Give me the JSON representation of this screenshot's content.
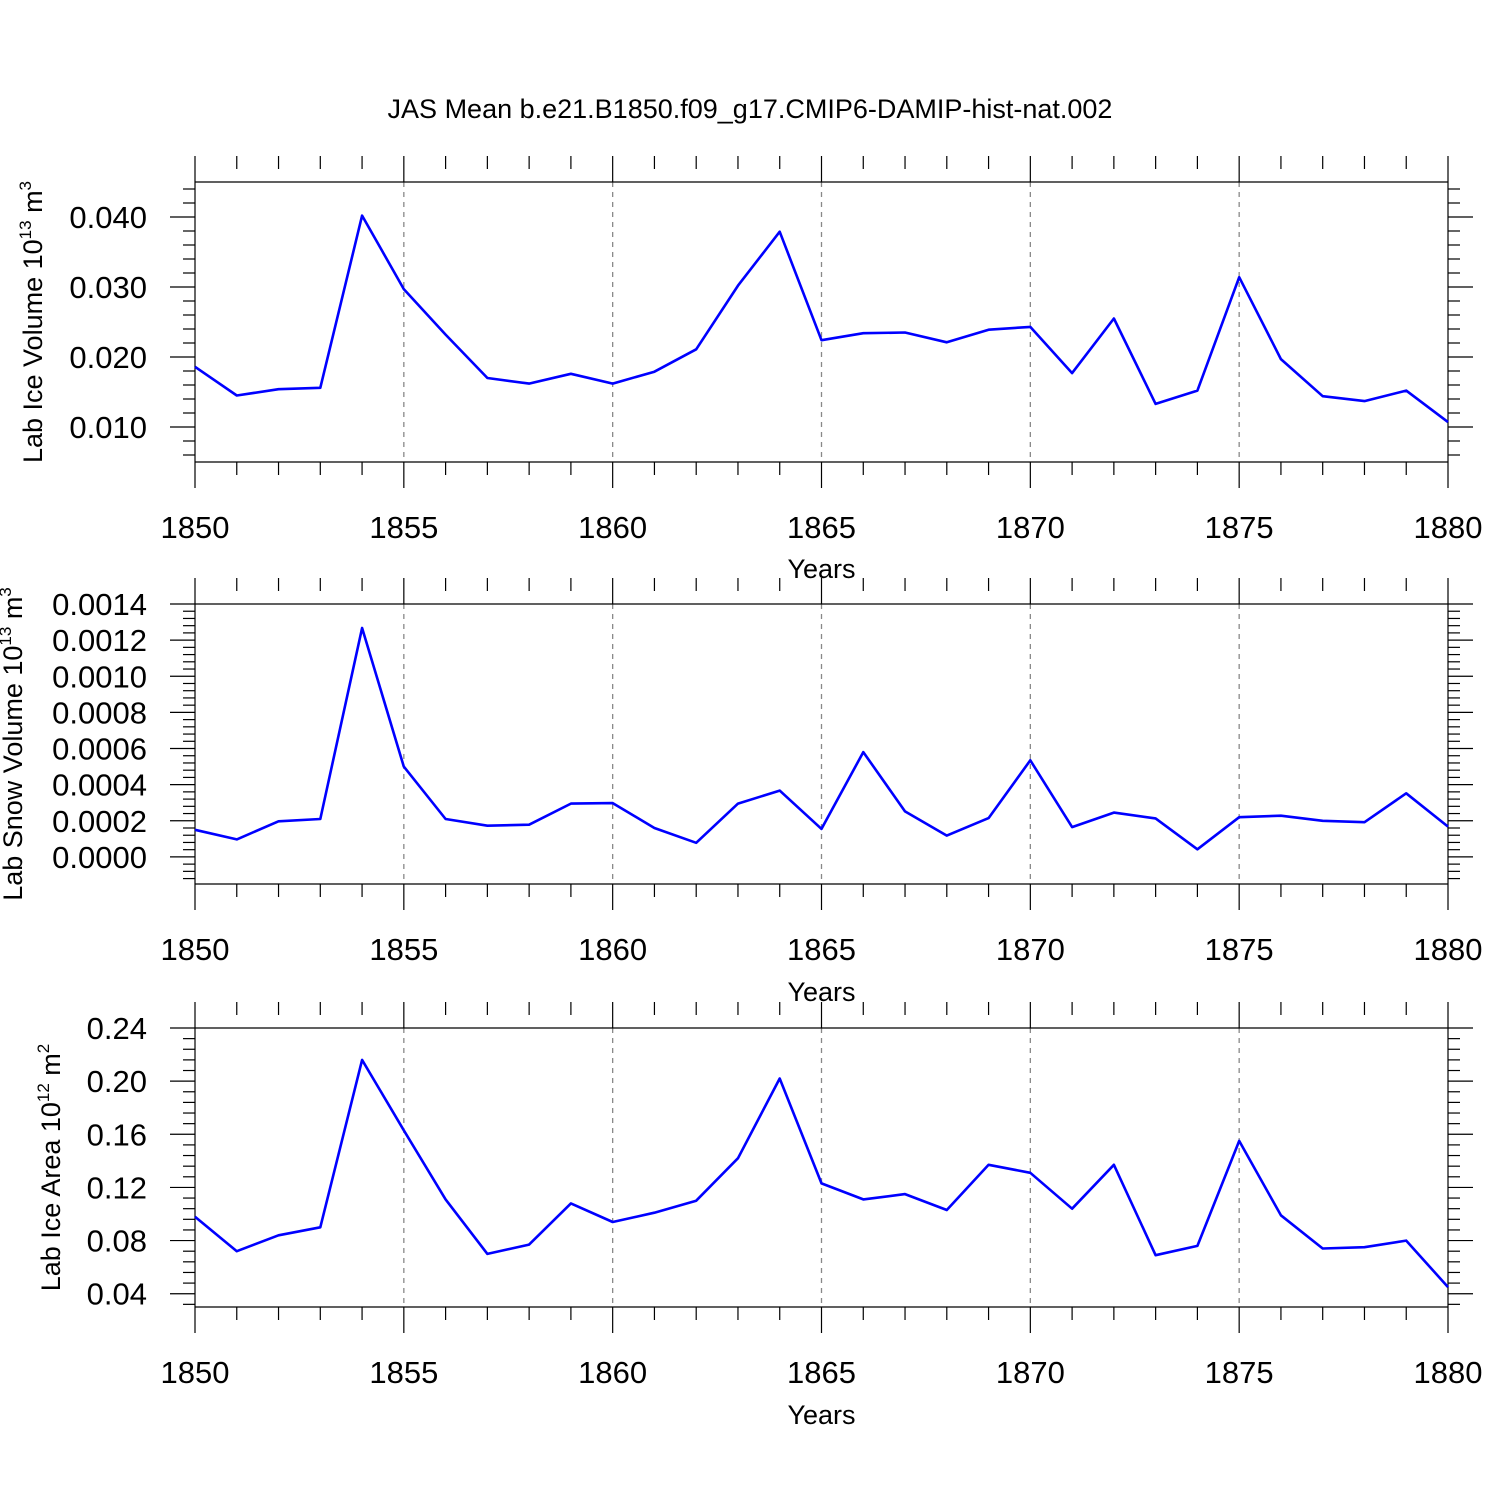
{
  "title": "JAS Mean b.e21.B1850.f09_g17.CMIP6-DAMIP-hist-nat.002",
  "chart_data": [
    {
      "type": "line",
      "title": "JAS Mean b.e21.B1850.f09_g17.CMIP6-DAMIP-hist-nat.002",
      "xlabel": "Years",
      "ylabel": {
        "text": "Lab Ice Volume 10",
        "sup1": "13",
        "mid": " m",
        "sup2": "3"
      },
      "xlim": [
        1850,
        1880
      ],
      "ylim": [
        0.005,
        0.045
      ],
      "x_ticks": [
        1850,
        1855,
        1860,
        1865,
        1870,
        1875,
        1880
      ],
      "x_tick_labels": [
        "1850",
        "1855",
        "1860",
        "1865",
        "1870",
        "1875",
        "1880"
      ],
      "y_ticks": [
        0.01,
        0.02,
        0.03,
        0.04
      ],
      "y_tick_labels": [
        "0.010",
        "0.020",
        "0.030",
        "0.040"
      ],
      "y_minor_step": 0.002,
      "grid": "x-major dashed",
      "series": [
        {
          "name": "Lab Ice Volume",
          "color": "#0000ff",
          "x": [
            1850,
            1851,
            1852,
            1853,
            1854,
            1855,
            1856,
            1857,
            1858,
            1859,
            1860,
            1861,
            1862,
            1863,
            1864,
            1865,
            1866,
            1867,
            1868,
            1869,
            1870,
            1871,
            1872,
            1873,
            1874,
            1875,
            1876,
            1877,
            1878,
            1879,
            1880
          ],
          "values": [
            0.0186,
            0.0145,
            0.0154,
            0.0156,
            0.0402,
            0.0297,
            0.0232,
            0.017,
            0.0162,
            0.0176,
            0.0162,
            0.0179,
            0.0211,
            0.0302,
            0.0379,
            0.0224,
            0.0234,
            0.0235,
            0.0221,
            0.0239,
            0.0243,
            0.0177,
            0.0255,
            0.0133,
            0.0152,
            0.0314,
            0.0197,
            0.0144,
            0.0137,
            0.0152,
            0.0107
          ]
        }
      ]
    },
    {
      "type": "line",
      "xlabel": "Years",
      "ylabel": {
        "text": "Lab Snow Volume 10",
        "sup1": "13",
        "mid": " m",
        "sup2": "3"
      },
      "xlim": [
        1850,
        1880
      ],
      "ylim": [
        -0.00015,
        0.0014
      ],
      "x_ticks": [
        1850,
        1855,
        1860,
        1865,
        1870,
        1875,
        1880
      ],
      "x_tick_labels": [
        "1850",
        "1855",
        "1860",
        "1865",
        "1870",
        "1875",
        "1880"
      ],
      "y_ticks": [
        0.0,
        0.0002,
        0.0004,
        0.0006,
        0.0008,
        0.001,
        0.0012,
        0.0014
      ],
      "y_tick_labels": [
        "0.0000",
        "0.0002",
        "0.0004",
        "0.0006",
        "0.0008",
        "0.0010",
        "0.0012",
        "0.0014"
      ],
      "y_minor_step": 4e-05,
      "grid": "x-major dashed",
      "series": [
        {
          "name": "Lab Snow Volume",
          "color": "#0000ff",
          "x": [
            1850,
            1851,
            1852,
            1853,
            1854,
            1855,
            1856,
            1857,
            1858,
            1859,
            1860,
            1861,
            1862,
            1863,
            1864,
            1865,
            1866,
            1867,
            1868,
            1869,
            1870,
            1871,
            1872,
            1873,
            1874,
            1875,
            1876,
            1877,
            1878,
            1879,
            1880
          ],
          "values": [
            0.00015,
            9.7e-05,
            0.000197,
            0.00021,
            0.001267,
            0.0005,
            0.00021,
            0.000173,
            0.000178,
            0.000295,
            0.000298,
            0.00016,
            7.8e-05,
            0.000295,
            0.000367,
            0.000155,
            0.00058,
            0.000252,
            0.000118,
            0.000215,
            0.000535,
            0.000165,
            0.000245,
            0.000213,
            4.2e-05,
            0.00022,
            0.000228,
            0.0002,
            0.000192,
            0.000352,
            0.000168
          ]
        }
      ]
    },
    {
      "type": "line",
      "xlabel": "Years",
      "ylabel": {
        "text": "Lab Ice Area 10",
        "sup1": "12",
        "mid": " m",
        "sup2": "2"
      },
      "xlim": [
        1850,
        1880
      ],
      "ylim": [
        0.03,
        0.24
      ],
      "x_ticks": [
        1850,
        1855,
        1860,
        1865,
        1870,
        1875,
        1880
      ],
      "x_tick_labels": [
        "1850",
        "1855",
        "1860",
        "1865",
        "1870",
        "1875",
        "1880"
      ],
      "y_ticks": [
        0.04,
        0.08,
        0.12,
        0.16,
        0.2,
        0.24
      ],
      "y_tick_labels": [
        "0.04",
        "0.08",
        "0.12",
        "0.16",
        "0.20",
        "0.24"
      ],
      "y_minor_step": 0.008,
      "grid": "x-major dashed",
      "series": [
        {
          "name": "Lab Ice Area",
          "color": "#0000ff",
          "x": [
            1850,
            1851,
            1852,
            1853,
            1854,
            1855,
            1856,
            1857,
            1858,
            1859,
            1860,
            1861,
            1862,
            1863,
            1864,
            1865,
            1866,
            1867,
            1868,
            1869,
            1870,
            1871,
            1872,
            1873,
            1874,
            1875,
            1876,
            1877,
            1878,
            1879,
            1880
          ],
          "values": [
            0.098,
            0.072,
            0.084,
            0.09,
            0.216,
            0.163,
            0.111,
            0.07,
            0.077,
            0.108,
            0.094,
            0.101,
            0.11,
            0.142,
            0.202,
            0.123,
            0.111,
            0.115,
            0.103,
            0.137,
            0.131,
            0.104,
            0.137,
            0.069,
            0.076,
            0.155,
            0.099,
            0.074,
            0.075,
            0.08,
            0.045
          ]
        }
      ]
    }
  ]
}
